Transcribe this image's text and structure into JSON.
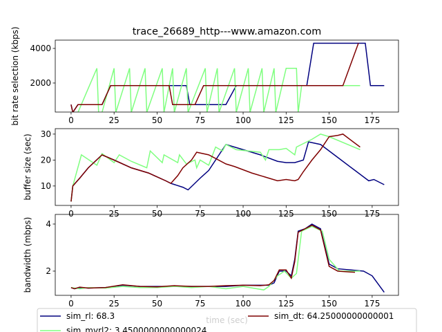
{
  "chart_data": [
    {
      "type": "line",
      "title": "trace_26689_http---www.amazon.com",
      "ylabel": "bit rate selection (kbps)",
      "xlim": [
        -9.2,
        190.3
      ],
      "xticks": [
        0,
        25,
        50,
        75,
        100,
        125,
        150,
        175
      ],
      "ylim": [
        320,
        4480
      ],
      "yticks": [
        2000,
        4000
      ],
      "series": [
        {
          "color": "#00007f",
          "x": [
            0,
            1,
            4,
            18,
            23,
            67,
            69,
            90,
            96,
            137,
            141,
            171,
            174,
            182
          ],
          "values": [
            750,
            300,
            750,
            750,
            1850,
            1850,
            750,
            750,
            1850,
            1850,
            4300,
            4300,
            1850,
            1850
          ]
        },
        {
          "color": "#7fff7f",
          "x": [
            0,
            4,
            15,
            16,
            18,
            25,
            26,
            34,
            35,
            43,
            44,
            53,
            54,
            59,
            60,
            67,
            68,
            78,
            79,
            85,
            86,
            95,
            96,
            103,
            104,
            111,
            112,
            118,
            119,
            125,
            131,
            132,
            134,
            168
          ],
          "values": [
            300,
            300,
            2850,
            300,
            300,
            2850,
            300,
            2850,
            300,
            2850,
            300,
            2850,
            300,
            2850,
            300,
            2850,
            300,
            2850,
            300,
            2850,
            300,
            2850,
            300,
            2850,
            300,
            2850,
            300,
            2850,
            300,
            2850,
            2850,
            300,
            1850,
            1850
          ]
        },
        {
          "color": "#7f0000",
          "x": [
            0,
            1,
            4,
            18,
            23,
            57,
            59,
            72,
            77,
            158,
            167
          ],
          "values": [
            750,
            300,
            750,
            750,
            1850,
            1850,
            750,
            750,
            1850,
            1850,
            4300
          ]
        }
      ]
    },
    {
      "type": "line",
      "ylabel": "buffer size (sec)",
      "xlim": [
        -9.2,
        190.3
      ],
      "xticks": [
        0,
        25,
        50,
        75,
        100,
        125,
        150,
        175
      ],
      "ylim": [
        2.5,
        32.1
      ],
      "yticks": [
        10,
        20,
        30
      ],
      "series": [
        {
          "color": "#00007f",
          "x": [
            0,
            1,
            5,
            10,
            18,
            25,
            35,
            45,
            55,
            58,
            65,
            68,
            75,
            80,
            90,
            100,
            110,
            120,
            125,
            130,
            135,
            138,
            145,
            155,
            165,
            173,
            176,
            182
          ],
          "values": [
            4,
            10,
            13,
            17,
            22,
            20,
            17,
            15,
            12,
            11,
            9.5,
            8.5,
            13,
            16,
            26,
            24,
            22,
            19.5,
            19,
            19,
            20,
            27,
            26,
            21,
            16,
            12,
            12.5,
            10.5
          ]
        },
        {
          "color": "#7fff7f",
          "x": [
            0,
            1,
            6,
            15,
            18,
            25,
            28,
            35,
            44,
            46,
            53,
            54,
            62,
            63,
            67,
            72,
            73,
            75,
            80,
            84,
            88,
            90,
            96,
            110,
            113,
            115,
            121,
            125,
            130,
            131,
            140,
            145,
            150,
            168
          ],
          "values": [
            4,
            10,
            22,
            18,
            22.5,
            19,
            22,
            19.5,
            17,
            23.5,
            19,
            22,
            19,
            22,
            18.5,
            20,
            17,
            20,
            18,
            25,
            23.5,
            26,
            24,
            23,
            20,
            24,
            24,
            24.5,
            22,
            25,
            28,
            30,
            29,
            24
          ]
        },
        {
          "color": "#7f0000",
          "x": [
            0,
            1,
            5,
            10,
            18,
            25,
            35,
            45,
            55,
            58,
            62,
            65,
            70,
            73,
            80,
            90,
            95,
            105,
            115,
            120,
            125,
            130,
            132,
            135,
            140,
            145,
            150,
            155,
            158,
            168
          ],
          "values": [
            4,
            10,
            13,
            17,
            22,
            20,
            17,
            15,
            12,
            11,
            14,
            17,
            20,
            23,
            22,
            18.5,
            17.5,
            15,
            13,
            12,
            12.5,
            12,
            12.5,
            15.5,
            20,
            24,
            29,
            29.5,
            30,
            25
          ]
        }
      ]
    },
    {
      "type": "line",
      "ylabel": "bandwidth (mbps)",
      "xlabel": "time (sec)",
      "legend": "lower center",
      "xlim": [
        -9.2,
        190.3
      ],
      "xticks": [
        0,
        25,
        50,
        75,
        100,
        125,
        150,
        175
      ],
      "ylim": [
        0.97,
        4.41
      ],
      "yticks": [
        2,
        4
      ],
      "series": [
        {
          "name": "sim_rl: 68.3",
          "color": "#00007f",
          "x": [
            0,
            2,
            5,
            10,
            20,
            30,
            40,
            50,
            60,
            70,
            80,
            90,
            100,
            110,
            115,
            118,
            121,
            125,
            128,
            130,
            132,
            136,
            140,
            145,
            150,
            155,
            170,
            175,
            182
          ],
          "values": [
            1.3,
            1.25,
            1.3,
            1.28,
            1.3,
            1.4,
            1.35,
            1.35,
            1.35,
            1.35,
            1.35,
            1.35,
            1.4,
            1.4,
            1.4,
            1.5,
            2.0,
            2.0,
            1.8,
            2.5,
            3.7,
            3.8,
            4.0,
            3.8,
            2.3,
            2.1,
            2.0,
            1.8,
            1.1
          ]
        },
        {
          "name": "sim_mvrl2: 3.4500000000000024",
          "color": "#7fff7f",
          "x": [
            0,
            5,
            10,
            20,
            30,
            40,
            50,
            60,
            70,
            80,
            90,
            100,
            112,
            115,
            120,
            124,
            128,
            131,
            134,
            140,
            146,
            150,
            156,
            168
          ],
          "values": [
            1.3,
            1.25,
            1.3,
            1.28,
            1.35,
            1.3,
            1.3,
            1.35,
            1.3,
            1.35,
            1.25,
            1.35,
            1.2,
            1.35,
            1.8,
            2.0,
            1.7,
            1.9,
            3.7,
            3.9,
            3.7,
            2.5,
            2.0,
            2.0
          ]
        },
        {
          "name": "sim_dt: 64.25000000000001",
          "color": "#7f0000",
          "x": [
            0,
            2,
            5,
            10,
            20,
            30,
            40,
            50,
            60,
            70,
            80,
            90,
            100,
            110,
            115,
            118,
            121,
            125,
            128,
            130,
            132,
            136,
            140,
            145,
            150,
            155,
            165
          ],
          "values": [
            1.3,
            1.25,
            1.32,
            1.28,
            1.3,
            1.42,
            1.35,
            1.33,
            1.38,
            1.35,
            1.35,
            1.38,
            1.4,
            1.38,
            1.42,
            1.6,
            2.05,
            2.05,
            1.7,
            2.4,
            3.65,
            3.8,
            3.95,
            3.75,
            2.2,
            2.0,
            1.95
          ]
        }
      ]
    }
  ]
}
